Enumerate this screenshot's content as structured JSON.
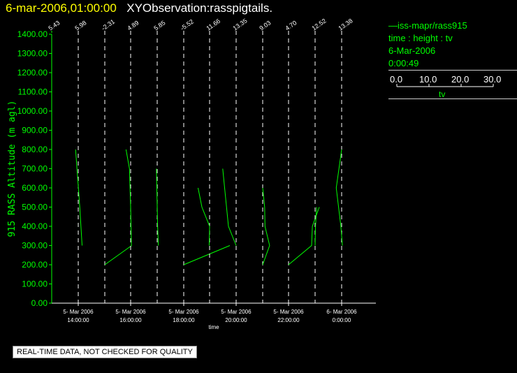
{
  "header": {
    "date_time": "6-mar-2006,01:00:00",
    "observation": "XYObservation:rasspigtails."
  },
  "legend": {
    "lines": [
      "—iss-mapr/rass915",
      "time : height : tv",
      "6-Mar-2006",
      "0:00:49"
    ],
    "tv_scale": {
      "labels": [
        "0.0",
        "10.0",
        "20.0",
        "30.0"
      ],
      "unit": "tv"
    }
  },
  "colors": {
    "accent": "#00ff00",
    "title": "#ffff00",
    "background": "#000000",
    "reference_line": "#ffffff"
  },
  "chart_data": {
    "type": "line",
    "title": "",
    "ylabel": "915 RASS Altitude (m agl)",
    "xlabel": "time",
    "ylim": [
      0,
      1400
    ],
    "yticks": [
      "0.00",
      "100.00",
      "200.00",
      "300.00",
      "400.00",
      "500.00",
      "600.00",
      "700.00",
      "800.00",
      "900.00",
      "1000.00",
      "1100.00",
      "1200.00",
      "1300.00",
      "1400.00"
    ],
    "xticks": [
      {
        "line1": "5- Mar 2006",
        "line2": "14:00:00"
      },
      {
        "line1": "5- Mar 2006",
        "line2": "16:00:00"
      },
      {
        "line1": "5- Mar 2006",
        "line2": "18:00:00"
      },
      {
        "line1": "5- Mar 2006",
        "line2": "20:00:00"
      },
      {
        "line1": "5- Mar 2006",
        "line2": "22:00:00"
      },
      {
        "line1": "6- Mar 2006",
        "line2": "0:00:00"
      }
    ],
    "profiles": [
      {
        "ref": "5.43",
        "points": [
          [
            0,
            0
          ],
          [
            0,
            1400
          ]
        ]
      },
      {
        "ref": "5.98",
        "points": [
          [
            -0.7,
            800
          ],
          [
            0.4,
            500
          ],
          [
            1.0,
            300
          ]
        ]
      },
      {
        "ref": "-2.31",
        "points": [
          [
            0,
            200
          ],
          [
            7,
            300
          ]
        ]
      },
      {
        "ref": "4.89",
        "points": [
          [
            -1.2,
            800
          ],
          [
            -0.3,
            700
          ],
          [
            0,
            500
          ],
          [
            0.2,
            300
          ]
        ]
      },
      {
        "ref": "5.85",
        "points": [
          [
            -0.2,
            700
          ],
          [
            0.1,
            400
          ],
          [
            0.3,
            300
          ]
        ]
      },
      {
        "ref": "-5.52",
        "points": [
          [
            0,
            200
          ],
          [
            12,
            300
          ]
        ]
      },
      {
        "ref": "11.66",
        "points": [
          [
            -3,
            600
          ],
          [
            -2,
            500
          ],
          [
            0,
            400
          ],
          [
            -0.1,
            300
          ]
        ]
      },
      {
        "ref": "13.35",
        "points": [
          [
            -3.5,
            700
          ],
          [
            -3,
            600
          ],
          [
            -2,
            400
          ],
          [
            0,
            300
          ]
        ]
      },
      {
        "ref": "9.03",
        "points": [
          [
            0,
            600
          ],
          [
            0.5,
            500
          ],
          [
            0.6,
            400
          ],
          [
            1.8,
            300
          ],
          [
            0,
            200
          ]
        ]
      },
      {
        "ref": "4.70",
        "points": [
          [
            0,
            200
          ],
          [
            6,
            300
          ],
          [
            6.2,
            400
          ],
          [
            8,
            500
          ]
        ]
      },
      {
        "ref": "12.52",
        "points": [
          [
            0,
            300
          ],
          [
            0.1,
            400
          ],
          [
            0.4,
            500
          ]
        ]
      },
      {
        "ref": "13.38",
        "points": [
          [
            0,
            800
          ],
          [
            -1.4,
            600
          ],
          [
            -0.2,
            400
          ],
          [
            0.2,
            300
          ]
        ]
      }
    ]
  },
  "footer": {
    "quality_note": "REAL-TIME DATA, NOT CHECKED FOR QUALITY"
  }
}
